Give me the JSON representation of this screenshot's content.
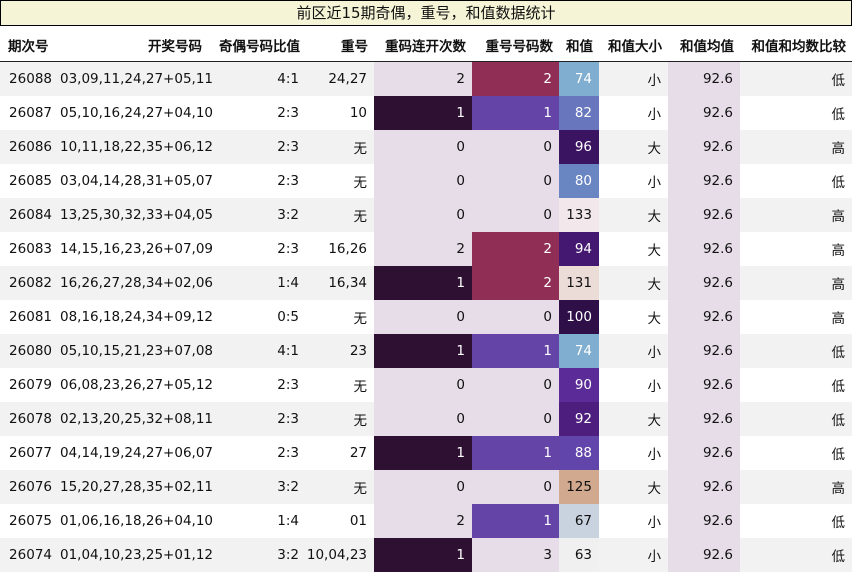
{
  "title": "前区近15期奇偶，重号，和值数据统计",
  "headers": [
    "期次号",
    "开奖号码",
    "奇偶号码比值",
    "重号",
    "重码连开次数",
    "重号号码数",
    "和值",
    "和值大小",
    "和值均值",
    "和值和均数比较"
  ],
  "colors": {
    "bg_light": "#e7dde9",
    "consec_1": "#2e1033",
    "repeat_1": "#6544a7",
    "repeat_2": "#912e55",
    "sum_scale": {
      "63": "#f0f0f0",
      "67": "#c8d3df",
      "74": "#7faed0",
      "80": "#6a86c2",
      "82": "#6776bd",
      "88": "#6245aa",
      "90": "#5b2c98",
      "92": "#4d1e7d",
      "94": "#441871",
      "96": "#3b1461",
      "100": "#2f0f48",
      "125": "#d1a98e",
      "131": "#ecdcd7",
      "133": "#f2e8ec"
    }
  },
  "rows": [
    {
      "issue": "26088",
      "numbers": "03,09,11,24,27+05,11",
      "ratio": "4:1",
      "repeat": "24,27",
      "consec": "2",
      "repeat_count": "2",
      "sum": "74",
      "size": "小",
      "avg": "92.6",
      "cmp": "低"
    },
    {
      "issue": "26087",
      "numbers": "05,10,16,24,27+04,10",
      "ratio": "2:3",
      "repeat": "10",
      "consec": "1",
      "repeat_count": "1",
      "sum": "82",
      "size": "小",
      "avg": "92.6",
      "cmp": "低"
    },
    {
      "issue": "26086",
      "numbers": "10,11,18,22,35+06,12",
      "ratio": "2:3",
      "repeat": "无",
      "consec": "0",
      "repeat_count": "0",
      "sum": "96",
      "size": "大",
      "avg": "92.6",
      "cmp": "高"
    },
    {
      "issue": "26085",
      "numbers": "03,04,14,28,31+05,07",
      "ratio": "2:3",
      "repeat": "无",
      "consec": "0",
      "repeat_count": "0",
      "sum": "80",
      "size": "小",
      "avg": "92.6",
      "cmp": "低"
    },
    {
      "issue": "26084",
      "numbers": "13,25,30,32,33+04,05",
      "ratio": "3:2",
      "repeat": "无",
      "consec": "0",
      "repeat_count": "0",
      "sum": "133",
      "size": "大",
      "avg": "92.6",
      "cmp": "高"
    },
    {
      "issue": "26083",
      "numbers": "14,15,16,23,26+07,09",
      "ratio": "2:3",
      "repeat": "16,26",
      "consec": "2",
      "repeat_count": "2",
      "sum": "94",
      "size": "大",
      "avg": "92.6",
      "cmp": "高"
    },
    {
      "issue": "26082",
      "numbers": "16,26,27,28,34+02,06",
      "ratio": "1:4",
      "repeat": "16,34",
      "consec": "1",
      "repeat_count": "2",
      "sum": "131",
      "size": "大",
      "avg": "92.6",
      "cmp": "高"
    },
    {
      "issue": "26081",
      "numbers": "08,16,18,24,34+09,12",
      "ratio": "0:5",
      "repeat": "无",
      "consec": "0",
      "repeat_count": "0",
      "sum": "100",
      "size": "大",
      "avg": "92.6",
      "cmp": "高"
    },
    {
      "issue": "26080",
      "numbers": "05,10,15,21,23+07,08",
      "ratio": "4:1",
      "repeat": "23",
      "consec": "1",
      "repeat_count": "1",
      "sum": "74",
      "size": "小",
      "avg": "92.6",
      "cmp": "低"
    },
    {
      "issue": "26079",
      "numbers": "06,08,23,26,27+05,12",
      "ratio": "2:3",
      "repeat": "无",
      "consec": "0",
      "repeat_count": "0",
      "sum": "90",
      "size": "小",
      "avg": "92.6",
      "cmp": "低"
    },
    {
      "issue": "26078",
      "numbers": "02,13,20,25,32+08,11",
      "ratio": "2:3",
      "repeat": "无",
      "consec": "0",
      "repeat_count": "0",
      "sum": "92",
      "size": "大",
      "avg": "92.6",
      "cmp": "低"
    },
    {
      "issue": "26077",
      "numbers": "04,14,19,24,27+06,07",
      "ratio": "2:3",
      "repeat": "27",
      "consec": "1",
      "repeat_count": "1",
      "sum": "88",
      "size": "小",
      "avg": "92.6",
      "cmp": "低"
    },
    {
      "issue": "26076",
      "numbers": "15,20,27,28,35+02,11",
      "ratio": "3:2",
      "repeat": "无",
      "consec": "0",
      "repeat_count": "0",
      "sum": "125",
      "size": "大",
      "avg": "92.6",
      "cmp": "高"
    },
    {
      "issue": "26075",
      "numbers": "01,06,16,18,26+04,10",
      "ratio": "1:4",
      "repeat": "01",
      "consec": "2",
      "repeat_count": "1",
      "sum": "67",
      "size": "小",
      "avg": "92.6",
      "cmp": "低"
    },
    {
      "issue": "26074",
      "numbers": "01,04,10,23,25+01,12",
      "ratio": "3:2",
      "repeat": "10,04,23",
      "consec": "1",
      "repeat_count": "3",
      "sum": "63",
      "size": "小",
      "avg": "92.6",
      "cmp": "低"
    }
  ]
}
